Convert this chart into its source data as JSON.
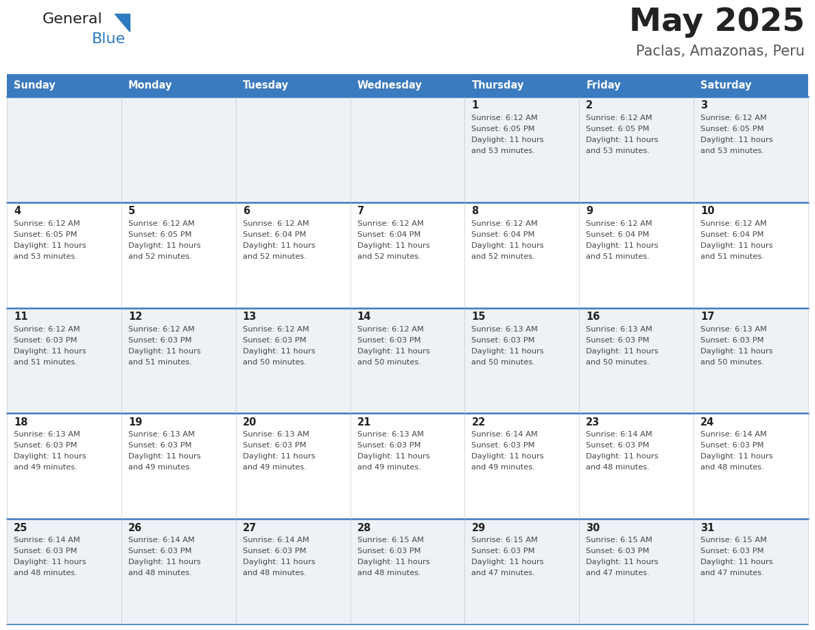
{
  "title": "May 2025",
  "subtitle": "Paclas, Amazonas, Peru",
  "days_of_week": [
    "Sunday",
    "Monday",
    "Tuesday",
    "Wednesday",
    "Thursday",
    "Friday",
    "Saturday"
  ],
  "header_bg": "#3a7abf",
  "header_text": "#ffffff",
  "row_bg_odd": "#eef2f7",
  "row_bg_even": "#ffffff",
  "cell_border": "#3a7abf",
  "day_number_color": "#222222",
  "text_color": "#444444",
  "title_color": "#222222",
  "subtitle_color": "#555555",
  "calendar": [
    [
      null,
      null,
      null,
      null,
      {
        "day": 1,
        "sunrise": "6:12 AM",
        "sunset": "6:05 PM",
        "daylight": "11 hours and 53 minutes."
      },
      {
        "day": 2,
        "sunrise": "6:12 AM",
        "sunset": "6:05 PM",
        "daylight": "11 hours and 53 minutes."
      },
      {
        "day": 3,
        "sunrise": "6:12 AM",
        "sunset": "6:05 PM",
        "daylight": "11 hours and 53 minutes."
      }
    ],
    [
      {
        "day": 4,
        "sunrise": "6:12 AM",
        "sunset": "6:05 PM",
        "daylight": "11 hours and 53 minutes."
      },
      {
        "day": 5,
        "sunrise": "6:12 AM",
        "sunset": "6:05 PM",
        "daylight": "11 hours and 52 minutes."
      },
      {
        "day": 6,
        "sunrise": "6:12 AM",
        "sunset": "6:04 PM",
        "daylight": "11 hours and 52 minutes."
      },
      {
        "day": 7,
        "sunrise": "6:12 AM",
        "sunset": "6:04 PM",
        "daylight": "11 hours and 52 minutes."
      },
      {
        "day": 8,
        "sunrise": "6:12 AM",
        "sunset": "6:04 PM",
        "daylight": "11 hours and 52 minutes."
      },
      {
        "day": 9,
        "sunrise": "6:12 AM",
        "sunset": "6:04 PM",
        "daylight": "11 hours and 51 minutes."
      },
      {
        "day": 10,
        "sunrise": "6:12 AM",
        "sunset": "6:04 PM",
        "daylight": "11 hours and 51 minutes."
      }
    ],
    [
      {
        "day": 11,
        "sunrise": "6:12 AM",
        "sunset": "6:03 PM",
        "daylight": "11 hours and 51 minutes."
      },
      {
        "day": 12,
        "sunrise": "6:12 AM",
        "sunset": "6:03 PM",
        "daylight": "11 hours and 51 minutes."
      },
      {
        "day": 13,
        "sunrise": "6:12 AM",
        "sunset": "6:03 PM",
        "daylight": "11 hours and 50 minutes."
      },
      {
        "day": 14,
        "sunrise": "6:12 AM",
        "sunset": "6:03 PM",
        "daylight": "11 hours and 50 minutes."
      },
      {
        "day": 15,
        "sunrise": "6:13 AM",
        "sunset": "6:03 PM",
        "daylight": "11 hours and 50 minutes."
      },
      {
        "day": 16,
        "sunrise": "6:13 AM",
        "sunset": "6:03 PM",
        "daylight": "11 hours and 50 minutes."
      },
      {
        "day": 17,
        "sunrise": "6:13 AM",
        "sunset": "6:03 PM",
        "daylight": "11 hours and 50 minutes."
      }
    ],
    [
      {
        "day": 18,
        "sunrise": "6:13 AM",
        "sunset": "6:03 PM",
        "daylight": "11 hours and 49 minutes."
      },
      {
        "day": 19,
        "sunrise": "6:13 AM",
        "sunset": "6:03 PM",
        "daylight": "11 hours and 49 minutes."
      },
      {
        "day": 20,
        "sunrise": "6:13 AM",
        "sunset": "6:03 PM",
        "daylight": "11 hours and 49 minutes."
      },
      {
        "day": 21,
        "sunrise": "6:13 AM",
        "sunset": "6:03 PM",
        "daylight": "11 hours and 49 minutes."
      },
      {
        "day": 22,
        "sunrise": "6:14 AM",
        "sunset": "6:03 PM",
        "daylight": "11 hours and 49 minutes."
      },
      {
        "day": 23,
        "sunrise": "6:14 AM",
        "sunset": "6:03 PM",
        "daylight": "11 hours and 48 minutes."
      },
      {
        "day": 24,
        "sunrise": "6:14 AM",
        "sunset": "6:03 PM",
        "daylight": "11 hours and 48 minutes."
      }
    ],
    [
      {
        "day": 25,
        "sunrise": "6:14 AM",
        "sunset": "6:03 PM",
        "daylight": "11 hours and 48 minutes."
      },
      {
        "day": 26,
        "sunrise": "6:14 AM",
        "sunset": "6:03 PM",
        "daylight": "11 hours and 48 minutes."
      },
      {
        "day": 27,
        "sunrise": "6:14 AM",
        "sunset": "6:03 PM",
        "daylight": "11 hours and 48 minutes."
      },
      {
        "day": 28,
        "sunrise": "6:15 AM",
        "sunset": "6:03 PM",
        "daylight": "11 hours and 48 minutes."
      },
      {
        "day": 29,
        "sunrise": "6:15 AM",
        "sunset": "6:03 PM",
        "daylight": "11 hours and 47 minutes."
      },
      {
        "day": 30,
        "sunrise": "6:15 AM",
        "sunset": "6:03 PM",
        "daylight": "11 hours and 47 minutes."
      },
      {
        "day": 31,
        "sunrise": "6:15 AM",
        "sunset": "6:03 PM",
        "daylight": "11 hours and 47 minutes."
      }
    ]
  ]
}
